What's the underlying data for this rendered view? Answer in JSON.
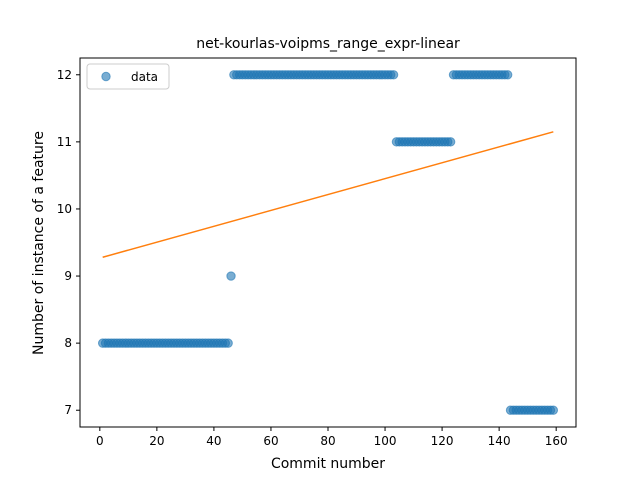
{
  "chart_data": {
    "type": "scatter",
    "title": "net-kourlas-voipms_range_expr-linear",
    "xlabel": "Commit number",
    "ylabel": "Number of instance of a feature",
    "xlim": [
      -6.95,
      166.95
    ],
    "ylim": [
      6.75,
      12.25
    ],
    "xticks": [
      0,
      20,
      40,
      60,
      80,
      100,
      120,
      140,
      160
    ],
    "yticks": [
      7,
      8,
      9,
      10,
      11,
      12
    ],
    "grid": false,
    "legend": {
      "location": "upper-left",
      "entries": [
        "data"
      ]
    },
    "colors": {
      "data": "#1f77b4",
      "fit": "#ff7f0e"
    },
    "series": [
      {
        "name": "data",
        "kind": "scatter",
        "segments": [
          {
            "x_start": 1,
            "x_end": 45,
            "y": 8
          },
          {
            "x_start": 46,
            "x_end": 46,
            "y": 9
          },
          {
            "x_start": 47,
            "x_end": 103,
            "y": 12
          },
          {
            "x_start": 104,
            "x_end": 123,
            "y": 11
          },
          {
            "x_start": 124,
            "x_end": 143,
            "y": 12
          },
          {
            "x_start": 144,
            "x_end": 159,
            "y": 7
          }
        ]
      },
      {
        "kind": "line",
        "x": [
          1,
          159
        ],
        "y": [
          9.28,
          11.15
        ]
      }
    ]
  }
}
